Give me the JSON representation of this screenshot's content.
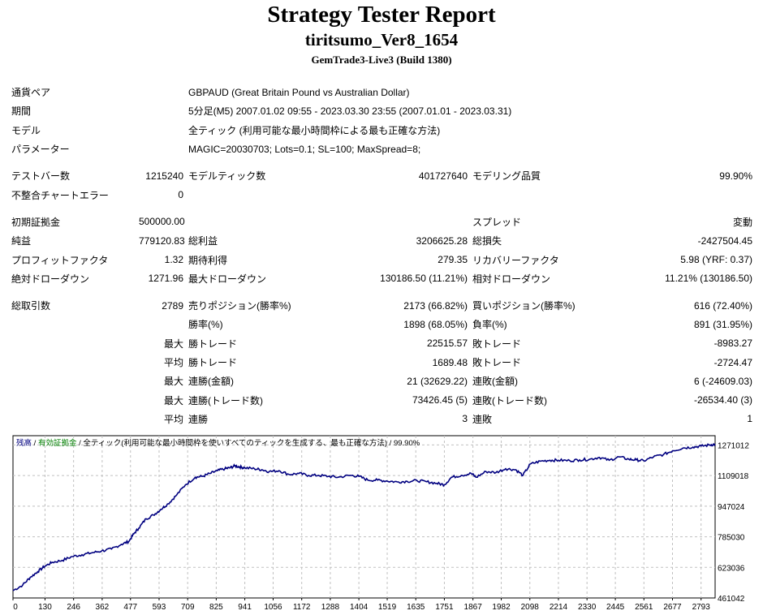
{
  "header": {
    "title": "Strategy Tester Report",
    "subtitle": "tiritsumo_Ver8_1654",
    "build": "GemTrade3-Live3 (Build 1380)"
  },
  "info": {
    "pair_label": "通貨ペア",
    "pair_value": "GBPAUD (Great Britain Pound vs Australian Dollar)",
    "period_label": "期間",
    "period_value": "5分足(M5) 2007.01.02 09:55 - 2023.03.30 23:55 (2007.01.01 - 2023.03.31)",
    "model_label": "モデル",
    "model_value": "全ティック (利用可能な最小時間枠による最も正確な方法)",
    "params_label": "パラメーター",
    "params_value": "MAGIC=20030703; Lots=0.1; SL=100; MaxSpread=8;"
  },
  "stats": {
    "test_bars_label": "テストバー数",
    "test_bars": "1215240",
    "model_ticks_label": "モデルティック数",
    "model_ticks": "401727640",
    "model_quality_label": "モデリング品質",
    "model_quality": "99.90%",
    "mismatch_label": "不整合チャートエラー",
    "mismatch": "0",
    "deposit_label": "初期証拠金",
    "deposit": "500000.00",
    "spread_label": "スプレッド",
    "spread": "変動",
    "net_label": "純益",
    "net": "779120.83",
    "gross_profit_label": "総利益",
    "gross_profit": "3206625.28",
    "gross_loss_label": "総損失",
    "gross_loss": "-2427504.45",
    "pf_label": "プロフィットファクタ",
    "pf": "1.32",
    "expected_label": "期待利得",
    "expected": "279.35",
    "recovery_label": "リカバリーファクタ",
    "recovery": "5.98 (YRF: 0.37)",
    "abs_dd_label": "絶対ドローダウン",
    "abs_dd": "1271.96",
    "max_dd_label": "最大ドローダウン",
    "max_dd": "130186.50 (11.21%)",
    "rel_dd_label": "相対ドローダウン",
    "rel_dd": "11.21% (130186.50)",
    "total_trades_label": "総取引数",
    "total_trades": "2789",
    "short_label": "売りポジション(勝率%)",
    "short": "2173 (66.82%)",
    "long_label": "買いポジション(勝率%)",
    "long": "616 (72.40%)",
    "win_pct_label": "勝率(%)",
    "win_pct": "1898 (68.05%)",
    "loss_pct_label": "負率(%)",
    "loss_pct": "891 (31.95%)",
    "max_word": "最大",
    "avg_word": "平均",
    "win_trade_label": "勝トレード",
    "loss_trade_label": "敗トレード",
    "max_win": "22515.57",
    "max_loss": "-8983.27",
    "avg_win": "1689.48",
    "avg_loss": "-2724.47",
    "cons_win_amt_label": "連勝(金額)",
    "cons_win_amt": "21 (32629.22)",
    "cons_loss_amt_label": "連敗(金額)",
    "cons_loss_amt": "6 (-24609.03)",
    "cons_win_cnt_label": "連勝(トレード数)",
    "cons_win_cnt": "73426.45 (5)",
    "cons_loss_cnt_label": "連敗(トレード数)",
    "cons_loss_cnt": "-26534.40 (3)",
    "avg_cons_win_label": "連勝",
    "avg_cons_win": "3",
    "avg_cons_loss_label": "連敗",
    "avg_cons_loss": "1"
  },
  "chart_data": {
    "type": "line",
    "legend": {
      "balance": "残高",
      "sep1": " / ",
      "equity": "有効証拠金",
      "sep2": " / ",
      "model": "全ティック(利用可能な最小時間枠を使いすべてのティックを生成する、最も正確な方法)",
      "sep3": " / ",
      "quality": "99.90%"
    },
    "legend_placement": "top-left",
    "grid": true,
    "xlim": [
      0,
      2850
    ],
    "ylim": [
      461042,
      1320000
    ],
    "x_ticks": [
      0,
      130,
      246,
      362,
      477,
      593,
      709,
      825,
      941,
      1056,
      1172,
      1288,
      1404,
      1519,
      1635,
      1751,
      1867,
      1982,
      2098,
      2214,
      2330,
      2445,
      2561,
      2677,
      2793
    ],
    "y_ticks": [
      461042,
      623036,
      785030,
      947024,
      1109018,
      1271012
    ],
    "colors": {
      "balance": "#000080",
      "grid": "#c0c0c0",
      "legend_balance": "#000080",
      "legend_equity": "#008000"
    },
    "series": [
      {
        "x": [
          0,
          40,
          70,
          100,
          130,
          160,
          200,
          240,
          280,
          320,
          360,
          400,
          440,
          470,
          490,
          510,
          540,
          570,
          600,
          630,
          660,
          700,
          740,
          770,
          800,
          830,
          860,
          880,
          900,
          920,
          941,
          980,
          1010,
          1040,
          1080,
          1120,
          1160,
          1200,
          1240,
          1280,
          1320,
          1370,
          1404,
          1440,
          1480,
          1519,
          1560,
          1600,
          1640,
          1680,
          1720,
          1751,
          1780,
          1820,
          1860,
          1880,
          1920,
          1960,
          2000,
          2040,
          2070,
          2100,
          2140,
          2180,
          2214,
          2260,
          2300,
          2340,
          2380,
          2420,
          2460,
          2500,
          2530,
          2561,
          2600,
          2640,
          2677,
          2720,
          2760,
          2793,
          2830,
          2850
        ],
        "y": [
          500000,
          530000,
          570000,
          600000,
          630000,
          650000,
          660000,
          680000,
          690000,
          700000,
          710000,
          720000,
          745000,
          760000,
          800000,
          830000,
          880000,
          900000,
          930000,
          960000,
          1000000,
          1060000,
          1100000,
          1105000,
          1120000,
          1135000,
          1145000,
          1150000,
          1160000,
          1155000,
          1150000,
          1145000,
          1140000,
          1130000,
          1135000,
          1115000,
          1120000,
          1110000,
          1110000,
          1105000,
          1100000,
          1110000,
          1105000,
          1085000,
          1085000,
          1080000,
          1075000,
          1078000,
          1082000,
          1076000,
          1068000,
          1060000,
          1100000,
          1110000,
          1120000,
          1100000,
          1130000,
          1125000,
          1145000,
          1140000,
          1110000,
          1170000,
          1185000,
          1190000,
          1190000,
          1188000,
          1192000,
          1195000,
          1205000,
          1190000,
          1208000,
          1195000,
          1192000,
          1187000,
          1208000,
          1220000,
          1240000,
          1255000,
          1260000,
          1265000,
          1271012,
          1275000
        ]
      }
    ]
  }
}
